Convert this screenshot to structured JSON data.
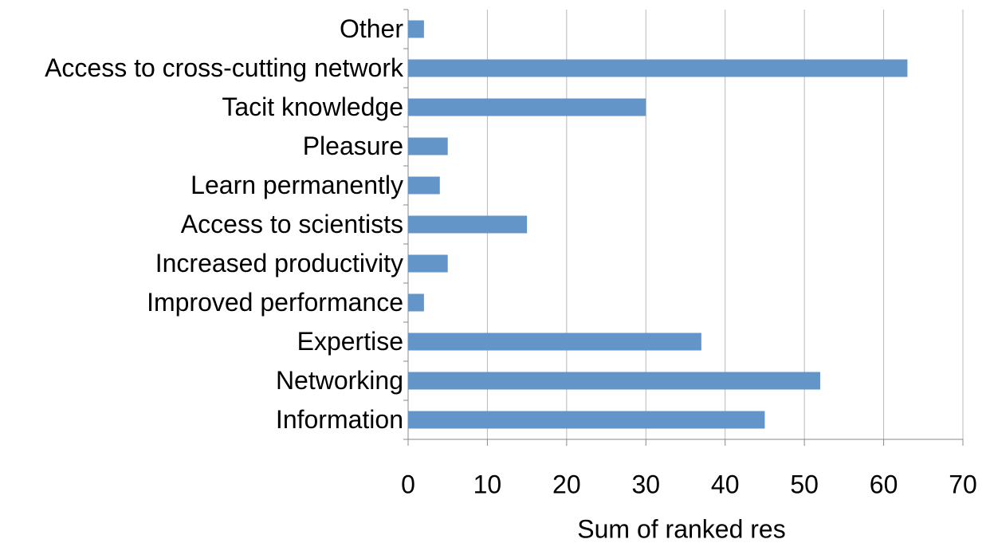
{
  "chart_data": {
    "type": "bar",
    "orientation": "horizontal",
    "categories": [
      "Other",
      "Access to cross-cutting network",
      "Tacit knowledge",
      "Pleasure",
      "Learn permanently",
      "Access to scientists",
      "Increased productivity",
      "Improved performance",
      "Expertise",
      "Networking",
      "Information"
    ],
    "values": [
      2,
      63,
      30,
      5,
      4,
      15,
      5,
      2,
      37,
      52,
      45
    ],
    "color": "#6495c9",
    "x_label": "Sum of ranked res",
    "xlim": [
      0,
      70
    ],
    "xticks": [
      0,
      10,
      20,
      30,
      40,
      50,
      60,
      70
    ],
    "grid": true
  }
}
